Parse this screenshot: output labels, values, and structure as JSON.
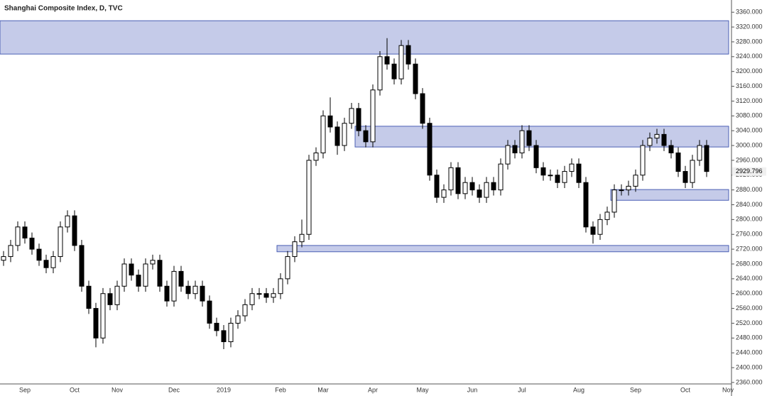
{
  "chart_data": {
    "type": "candlestick",
    "title": "Shanghai Composite Index, D, TVC",
    "categories": [
      null,
      null,
      null,
      "Sep",
      null,
      null,
      null,
      null,
      null,
      null,
      "Oct",
      null,
      null,
      null,
      null,
      null,
      "Nov",
      null,
      null,
      null,
      null,
      null,
      null,
      null,
      "Dec",
      null,
      null,
      null,
      null,
      null,
      null,
      "2019",
      null,
      null,
      null,
      null,
      null,
      null,
      null,
      "Feb",
      null,
      null,
      null,
      null,
      null,
      "Mar",
      null,
      null,
      null,
      null,
      null,
      null,
      "Apr",
      null,
      null,
      null,
      null,
      null,
      null,
      "May",
      null,
      null,
      null,
      null,
      null,
      null,
      "Jun",
      null,
      null,
      null,
      null,
      null,
      null,
      "Jul",
      null,
      null,
      null,
      null,
      null,
      null,
      null,
      "Aug",
      null,
      null,
      null,
      null,
      null,
      null,
      null,
      "Sep",
      null,
      null,
      null,
      null,
      null,
      null,
      "Oct",
      null,
      null,
      null,
      null,
      null,
      "Nov"
    ],
    "open": [
      2690,
      2700,
      2730,
      2780,
      2750,
      2720,
      2690,
      2670,
      2700,
      2780,
      2810,
      2730,
      2620,
      2560,
      2480,
      2600,
      2570,
      2620,
      2680,
      2650,
      2620,
      2680,
      2690,
      2620,
      2580,
      2660,
      2620,
      2600,
      2620,
      2580,
      2520,
      2500,
      2470,
      2520,
      2540,
      2570,
      2600,
      2600,
      2590,
      2600,
      2640,
      2700,
      2740,
      2760,
      2960,
      2980,
      3080,
      3050,
      3000,
      3060,
      3100,
      3040,
      3010,
      3150,
      3240,
      3220,
      3180,
      3270,
      3220,
      3140,
      3060,
      2920,
      2860,
      2880,
      2940,
      2870,
      2900,
      2880,
      2860,
      2900,
      2880,
      2950,
      3000,
      2980,
      3040,
      3000,
      2940,
      2920,
      2920,
      2900,
      2930,
      2950,
      2900,
      2780,
      2760,
      2800,
      2820,
      2880,
      2880,
      2890,
      2920,
      3000,
      3020,
      3030,
      3000,
      2980,
      2930,
      2900,
      2960,
      3000,
      null,
      null,
      null
    ],
    "high": [
      2715,
      2745,
      2795,
      2795,
      2765,
      2735,
      2705,
      2715,
      2795,
      2825,
      2825,
      2745,
      2635,
      2575,
      2615,
      2615,
      2635,
      2695,
      2695,
      2665,
      2695,
      2705,
      2705,
      2635,
      2675,
      2675,
      2635,
      2635,
      2635,
      2595,
      2535,
      2515,
      2535,
      2555,
      2585,
      2615,
      2615,
      2615,
      2615,
      2655,
      2715,
      2755,
      2800,
      2975,
      2995,
      3095,
      3130,
      3065,
      3075,
      3115,
      3115,
      3055,
      3165,
      3255,
      3290,
      3235,
      3285,
      3285,
      3235,
      3155,
      3075,
      2935,
      2895,
      2955,
      2955,
      2915,
      2915,
      2895,
      2915,
      2915,
      2965,
      3015,
      3015,
      3055,
      3055,
      3015,
      2955,
      2935,
      2935,
      2945,
      2965,
      2965,
      2915,
      2795,
      2815,
      2835,
      2895,
      2895,
      2905,
      2935,
      3015,
      3035,
      3045,
      3045,
      3015,
      2995,
      2945,
      2975,
      3015,
      3015,
      null,
      null,
      null
    ],
    "low": [
      2675,
      2685,
      2715,
      2735,
      2705,
      2675,
      2655,
      2655,
      2685,
      2765,
      2715,
      2605,
      2545,
      2455,
      2465,
      2555,
      2555,
      2605,
      2635,
      2605,
      2605,
      2665,
      2605,
      2565,
      2565,
      2605,
      2585,
      2585,
      2565,
      2505,
      2485,
      2450,
      2455,
      2505,
      2525,
      2555,
      2585,
      2575,
      2575,
      2585,
      2625,
      2685,
      2725,
      2745,
      2945,
      2965,
      3035,
      2975,
      2985,
      3045,
      3025,
      2995,
      2995,
      3135,
      3205,
      3165,
      3165,
      3205,
      3125,
      3045,
      2905,
      2845,
      2845,
      2865,
      2855,
      2855,
      2865,
      2845,
      2845,
      2865,
      2865,
      2935,
      2965,
      2965,
      2985,
      2925,
      2905,
      2905,
      2885,
      2885,
      2915,
      2885,
      2765,
      2735,
      2745,
      2785,
      2805,
      2865,
      2865,
      2875,
      2905,
      2985,
      3005,
      2985,
      2965,
      2915,
      2885,
      2885,
      2945,
      2915,
      null,
      null,
      null
    ],
    "close": [
      2700,
      2730,
      2780,
      2750,
      2720,
      2690,
      2670,
      2700,
      2780,
      2810,
      2730,
      2620,
      2560,
      2480,
      2600,
      2570,
      2620,
      2680,
      2650,
      2620,
      2680,
      2690,
      2620,
      2580,
      2660,
      2620,
      2600,
      2620,
      2580,
      2520,
      2500,
      2470,
      2520,
      2540,
      2570,
      2600,
      2600,
      2590,
      2600,
      2640,
      2700,
      2740,
      2760,
      2960,
      2980,
      3080,
      3050,
      3000,
      3060,
      3100,
      3040,
      3010,
      3150,
      3240,
      3220,
      3180,
      3270,
      3220,
      3140,
      3060,
      2920,
      2860,
      2880,
      2940,
      2870,
      2900,
      2880,
      2860,
      2900,
      2880,
      2950,
      3000,
      2980,
      3040,
      3000,
      2940,
      2920,
      2920,
      2900,
      2930,
      2950,
      2900,
      2780,
      2760,
      2800,
      2820,
      2880,
      2880,
      2890,
      2920,
      3000,
      3020,
      3030,
      3000,
      2980,
      2930,
      2900,
      2960,
      3000,
      2929.796,
      null,
      null,
      null
    ],
    "up_color": "#ffffff",
    "down_color": "#000000",
    "outline_color": "#000000",
    "zones": [
      {
        "from": 3247,
        "to": 3337,
        "start": 0
      },
      {
        "from": 2996,
        "to": 3052,
        "start": 50
      },
      {
        "from": 2852,
        "to": 2881,
        "start": 86
      },
      {
        "from": 2713,
        "to": 2730,
        "start": 39
      }
    ],
    "zone_color": "#c5cbe9",
    "zone_border": "#4a5fb4",
    "ylim": [
      2356,
      3393
    ],
    "yticks": [
      {
        "value": 2360,
        "label": "2360.000"
      },
      {
        "value": 2400,
        "label": "2400.000"
      },
      {
        "value": 2440,
        "label": "2440.000"
      },
      {
        "value": 2480,
        "label": "2480.000"
      },
      {
        "value": 2520,
        "label": "2520.000"
      },
      {
        "value": 2560,
        "label": "2560.000"
      },
      {
        "value": 2600,
        "label": "2600.000"
      },
      {
        "value": 2640,
        "label": "2640.000"
      },
      {
        "value": 2680,
        "label": "2680.000"
      },
      {
        "value": 2720,
        "label": "2720.000"
      },
      {
        "value": 2760,
        "label": "2760.000"
      },
      {
        "value": 2800,
        "label": "2800.000"
      },
      {
        "value": 2840,
        "label": "2840.000"
      },
      {
        "value": 2880,
        "label": "2880.000"
      },
      {
        "value": 2920,
        "label": "2920.000"
      },
      {
        "value": 2960,
        "label": "2960.000"
      },
      {
        "value": 3000,
        "label": "3000.000"
      },
      {
        "value": 3040,
        "label": "3040.000"
      },
      {
        "value": 3080,
        "label": "3080.000"
      },
      {
        "value": 3120,
        "label": "3120.000"
      },
      {
        "value": 3160,
        "label": "3160.000"
      },
      {
        "value": 3200,
        "label": "3200.000"
      },
      {
        "value": 3240,
        "label": "3240.000"
      },
      {
        "value": 3280,
        "label": "3280.000"
      },
      {
        "value": 3320,
        "label": "3320.000"
      },
      {
        "value": 3360,
        "label": "3360.000"
      }
    ],
    "grid": false
  }
}
